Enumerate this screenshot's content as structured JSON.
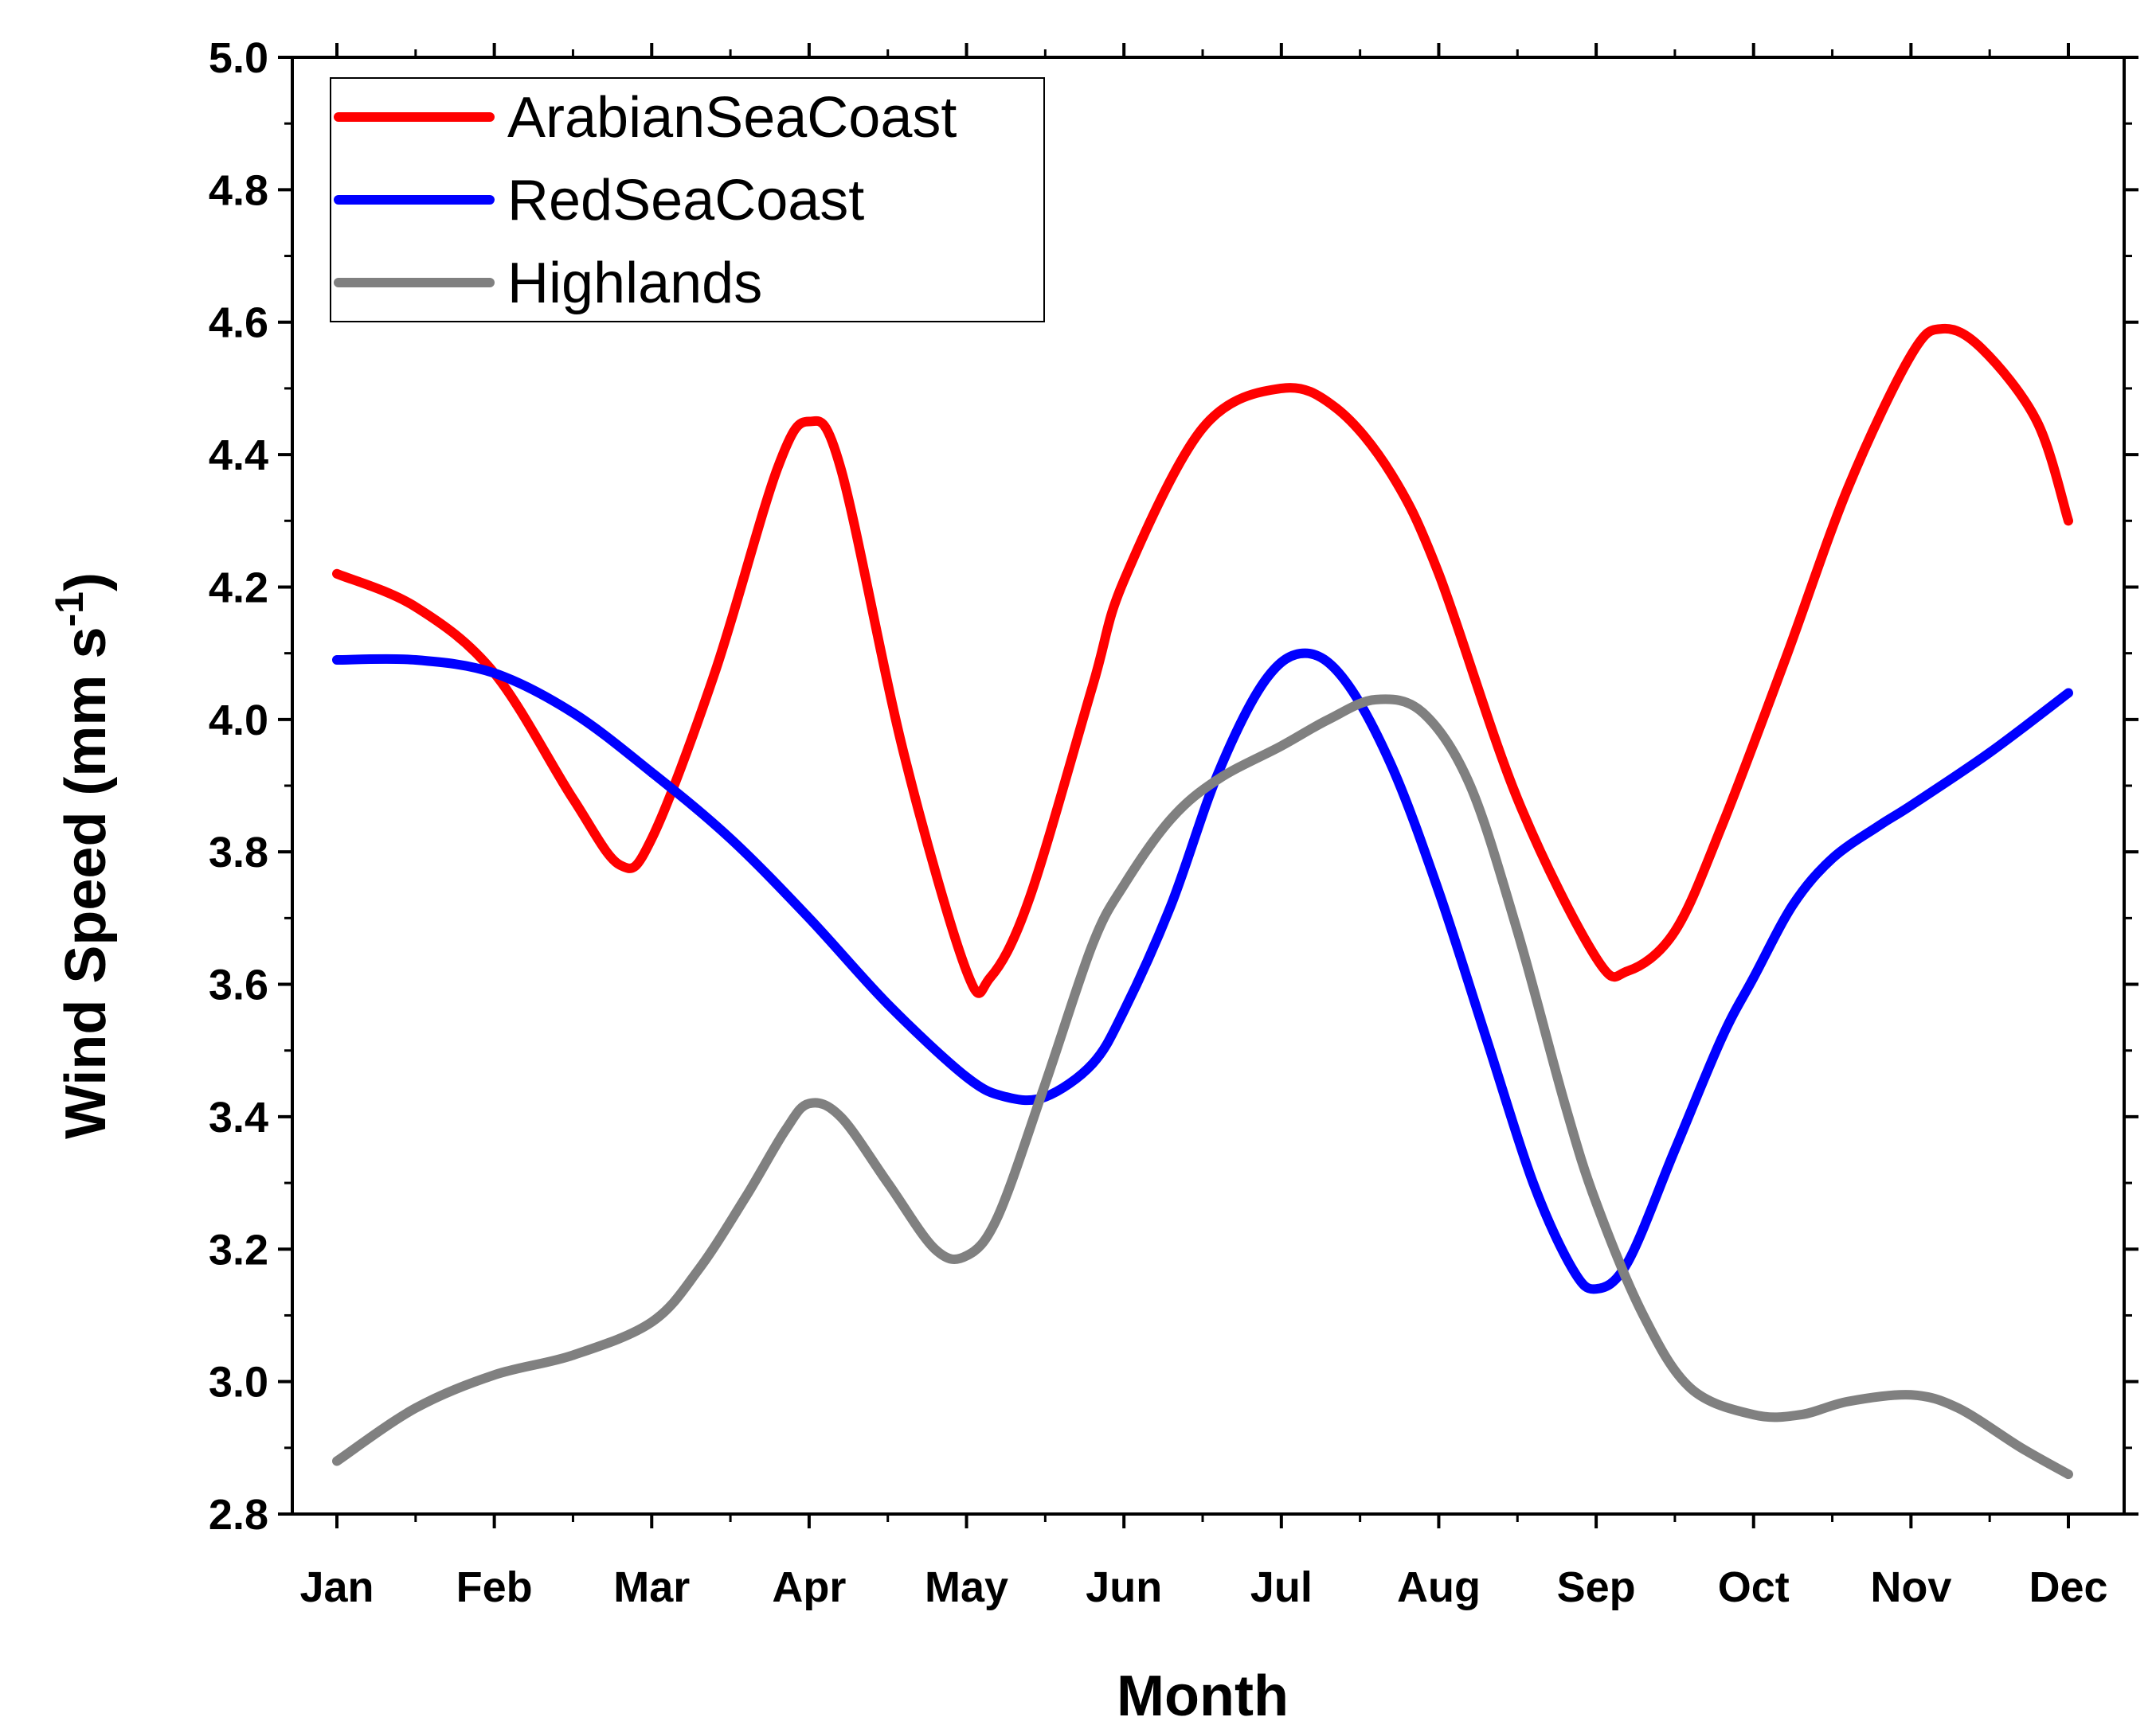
{
  "chart_data": {
    "type": "line",
    "title": "",
    "xlabel": "Month",
    "ylabel": "Wind Speed (mm s",
    "ylabel_superscript": "-1",
    "ylabel_close": ")",
    "categories": [
      "Jan",
      "Feb",
      "Mar",
      "Apr",
      "May",
      "Jun",
      "Jul",
      "Aug",
      "Sep",
      "Oct",
      "Nov",
      "Dec"
    ],
    "ylim": [
      2.8,
      5.0
    ],
    "yticks": [
      "2.8",
      "3.0",
      "3.2",
      "3.4",
      "3.6",
      "3.8",
      "4.0",
      "4.2",
      "4.4",
      "4.6",
      "4.8",
      "5.0"
    ],
    "ytick_values": [
      2.8,
      3.0,
      3.2,
      3.4,
      3.6,
      3.8,
      4.0,
      4.2,
      4.4,
      4.6,
      4.8,
      5.0
    ],
    "grid": false,
    "legend_position": "top-left",
    "series": [
      {
        "name": "ArabianSeaCoast",
        "color": "#ff0000",
        "points": [
          [
            0,
            4.22
          ],
          [
            0.5,
            4.17
          ],
          [
            1,
            4.07
          ],
          [
            1.5,
            3.88
          ],
          [
            1.8,
            3.78
          ],
          [
            2.0,
            3.82
          ],
          [
            2.4,
            4.07
          ],
          [
            2.8,
            4.38
          ],
          [
            3,
            4.45
          ],
          [
            3.2,
            4.38
          ],
          [
            3.6,
            3.95
          ],
          [
            4,
            3.62
          ],
          [
            4.15,
            3.61
          ],
          [
            4.4,
            3.73
          ],
          [
            4.8,
            4.05
          ],
          [
            5,
            4.21
          ],
          [
            5.5,
            4.44
          ],
          [
            6,
            4.5
          ],
          [
            6.35,
            4.47
          ],
          [
            6.7,
            4.37
          ],
          [
            7,
            4.22
          ],
          [
            7.5,
            3.88
          ],
          [
            8,
            3.64
          ],
          [
            8.2,
            3.62
          ],
          [
            8.5,
            3.68
          ],
          [
            8.8,
            3.84
          ],
          [
            9.2,
            4.09
          ],
          [
            9.6,
            4.35
          ],
          [
            10,
            4.55
          ],
          [
            10.2,
            4.59
          ],
          [
            10.45,
            4.56
          ],
          [
            10.8,
            4.45
          ],
          [
            11,
            4.3
          ]
        ]
      },
      {
        "name": "RedSeaCoast",
        "color": "#0000ff",
        "points": [
          [
            0,
            4.09
          ],
          [
            0.5,
            4.09
          ],
          [
            1,
            4.07
          ],
          [
            1.5,
            4.01
          ],
          [
            2,
            3.92
          ],
          [
            2.5,
            3.82
          ],
          [
            3,
            3.7
          ],
          [
            3.5,
            3.57
          ],
          [
            4,
            3.46
          ],
          [
            4.25,
            3.43
          ],
          [
            4.5,
            3.43
          ],
          [
            4.8,
            3.48
          ],
          [
            5,
            3.56
          ],
          [
            5.3,
            3.72
          ],
          [
            5.6,
            3.92
          ],
          [
            5.9,
            4.06
          ],
          [
            6.15,
            4.1
          ],
          [
            6.4,
            4.06
          ],
          [
            6.7,
            3.93
          ],
          [
            7,
            3.74
          ],
          [
            7.3,
            3.52
          ],
          [
            7.6,
            3.3
          ],
          [
            7.85,
            3.17
          ],
          [
            8,
            3.14
          ],
          [
            8.2,
            3.18
          ],
          [
            8.5,
            3.35
          ],
          [
            8.8,
            3.52
          ],
          [
            9,
            3.61
          ],
          [
            9.25,
            3.72
          ],
          [
            9.5,
            3.79
          ],
          [
            9.8,
            3.84
          ],
          [
            10,
            3.87
          ],
          [
            10.5,
            3.95
          ],
          [
            11,
            4.04
          ]
        ]
      },
      {
        "name": "Highlands",
        "color": "#808080",
        "points": [
          [
            0,
            2.88
          ],
          [
            0.5,
            2.96
          ],
          [
            1,
            3.01
          ],
          [
            1.5,
            3.04
          ],
          [
            2,
            3.09
          ],
          [
            2.3,
            3.17
          ],
          [
            2.6,
            3.28
          ],
          [
            2.85,
            3.38
          ],
          [
            3,
            3.42
          ],
          [
            3.2,
            3.4
          ],
          [
            3.5,
            3.3
          ],
          [
            3.8,
            3.2
          ],
          [
            4,
            3.19
          ],
          [
            4.2,
            3.25
          ],
          [
            4.5,
            3.45
          ],
          [
            4.8,
            3.66
          ],
          [
            5,
            3.75
          ],
          [
            5.3,
            3.85
          ],
          [
            5.6,
            3.91
          ],
          [
            6,
            3.96
          ],
          [
            6.3,
            4.0
          ],
          [
            6.6,
            4.03
          ],
          [
            6.9,
            4.01
          ],
          [
            7.2,
            3.9
          ],
          [
            7.5,
            3.68
          ],
          [
            7.8,
            3.42
          ],
          [
            8,
            3.27
          ],
          [
            8.3,
            3.1
          ],
          [
            8.6,
            2.99
          ],
          [
            9,
            2.95
          ],
          [
            9.3,
            2.95
          ],
          [
            9.6,
            2.97
          ],
          [
            10,
            2.98
          ],
          [
            10.3,
            2.96
          ],
          [
            10.7,
            2.9
          ],
          [
            11,
            2.86
          ]
        ]
      }
    ]
  }
}
